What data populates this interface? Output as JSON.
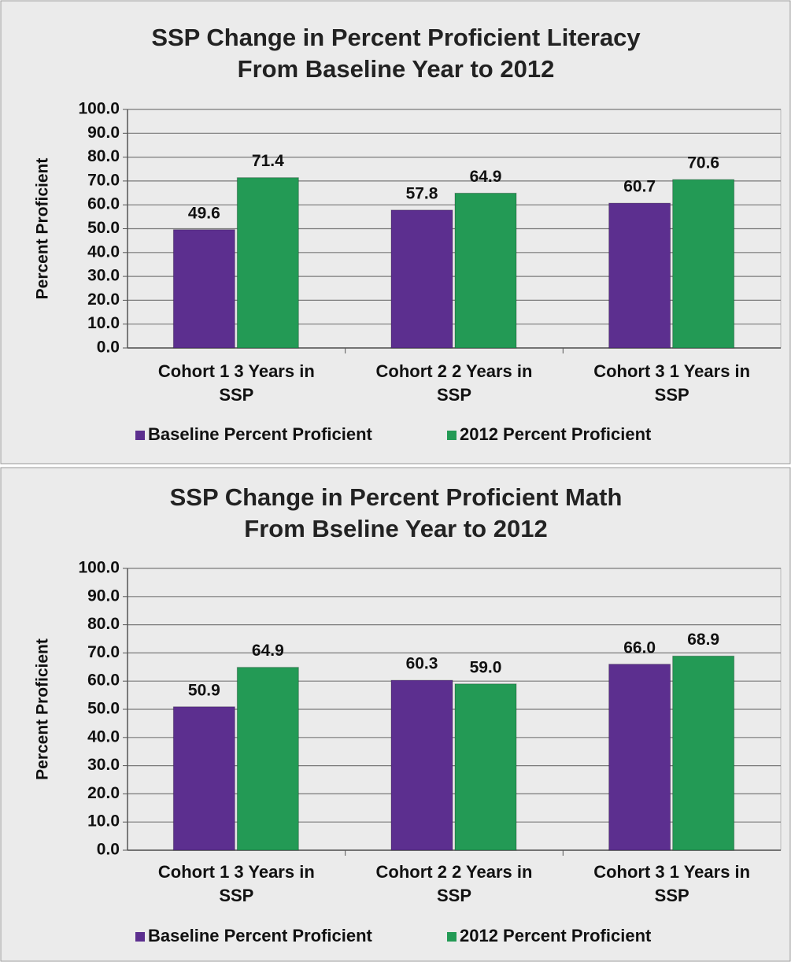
{
  "chart_data": [
    {
      "type": "bar",
      "title": "SSP Change in Percent Proficient Literacy\nFrom Baseline Year to 2012",
      "y_label": "Percent Proficient",
      "categories": [
        "Cohort 1 3 Years in SSP",
        "Cohort 2 2 Years in SSP",
        "Cohort 3 1 Years in SSP"
      ],
      "series": [
        {
          "name": "Baseline Percent Proficient",
          "color": "#5c2f8f",
          "values": [
            49.6,
            57.8,
            60.7
          ],
          "value_labels": [
            "49.6",
            "57.8",
            "60.7"
          ]
        },
        {
          "name": "2012 Percent Proficient",
          "color": "#239a55",
          "values": [
            71.4,
            64.9,
            70.6
          ],
          "value_labels": [
            "71.4",
            "64.9",
            "70.6"
          ]
        }
      ],
      "ylim": [
        0,
        100
      ],
      "yticks": [
        {
          "value": 0,
          "label": "0.0"
        },
        {
          "value": 10,
          "label": "10.0"
        },
        {
          "value": 20,
          "label": "20.0"
        },
        {
          "value": 30,
          "label": "30.0"
        },
        {
          "value": 40,
          "label": "40.0"
        },
        {
          "value": 50,
          "label": "50.0"
        },
        {
          "value": 60,
          "label": "60.0"
        },
        {
          "value": 70,
          "label": "70.0"
        },
        {
          "value": 80,
          "label": "80.0"
        },
        {
          "value": 90,
          "label": "90.0"
        },
        {
          "value": 100,
          "label": "100.0"
        }
      ],
      "grid": true,
      "legend": "bottom"
    },
    {
      "type": "bar",
      "title": "SSP Change in Percent Proficient Math\nFrom Bseline Year to 2012",
      "y_label": "Percent Proficient",
      "categories": [
        "Cohort 1 3 Years in SSP",
        "Cohort 2 2 Years in SSP",
        "Cohort 3 1 Years in SSP"
      ],
      "series": [
        {
          "name": "Baseline Percent Proficient",
          "color": "#5c2f8f",
          "values": [
            50.9,
            60.3,
            66.0
          ],
          "value_labels": [
            "50.9",
            "60.3",
            "66.0"
          ]
        },
        {
          "name": "2012 Percent Proficient",
          "color": "#239a55",
          "values": [
            64.9,
            59.0,
            68.9
          ],
          "value_labels": [
            "64.9",
            "59.0",
            "68.9"
          ]
        }
      ],
      "ylim": [
        0,
        100
      ],
      "yticks": [
        {
          "value": 0,
          "label": "0.0"
        },
        {
          "value": 10,
          "label": "10.0"
        },
        {
          "value": 20,
          "label": "20.0"
        },
        {
          "value": 30,
          "label": "30.0"
        },
        {
          "value": 40,
          "label": "40.0"
        },
        {
          "value": 50,
          "label": "50.0"
        },
        {
          "value": 60,
          "label": "60.0"
        },
        {
          "value": 70,
          "label": "70.0"
        },
        {
          "value": 80,
          "label": "80.0"
        },
        {
          "value": 90,
          "label": "90.0"
        },
        {
          "value": 100,
          "label": "100.0"
        }
      ],
      "grid": true,
      "legend": "bottom"
    }
  ]
}
